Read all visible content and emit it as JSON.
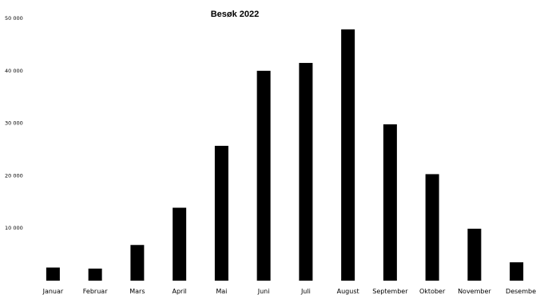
{
  "chart_data": {
    "type": "bar",
    "title": "Besøk 2022",
    "categories": [
      "Januar",
      "Februar",
      "Mars",
      "April",
      "Mai",
      "Juni",
      "Juli",
      "August",
      "September",
      "Oktober",
      "November",
      "Desember"
    ],
    "category_labels": [
      "Januar",
      "Februar",
      "Mars",
      "April",
      "Mai",
      "Juni",
      "Juli",
      "August",
      "September",
      "Oktober",
      "November",
      "Desembe"
    ],
    "values": [
      2500,
      2300,
      6800,
      13900,
      25700,
      40000,
      41500,
      47900,
      29800,
      20300,
      9900,
      3500
    ],
    "ylim": [
      0,
      50000
    ],
    "yticks": [
      10000,
      20000,
      30000,
      40000,
      50000
    ],
    "ytick_labels": [
      "10 000",
      "20 000",
      "30 000",
      "40 000",
      "50 000"
    ],
    "xlabel": "",
    "ylabel": "",
    "grid": false,
    "bar_color": "#000000"
  }
}
